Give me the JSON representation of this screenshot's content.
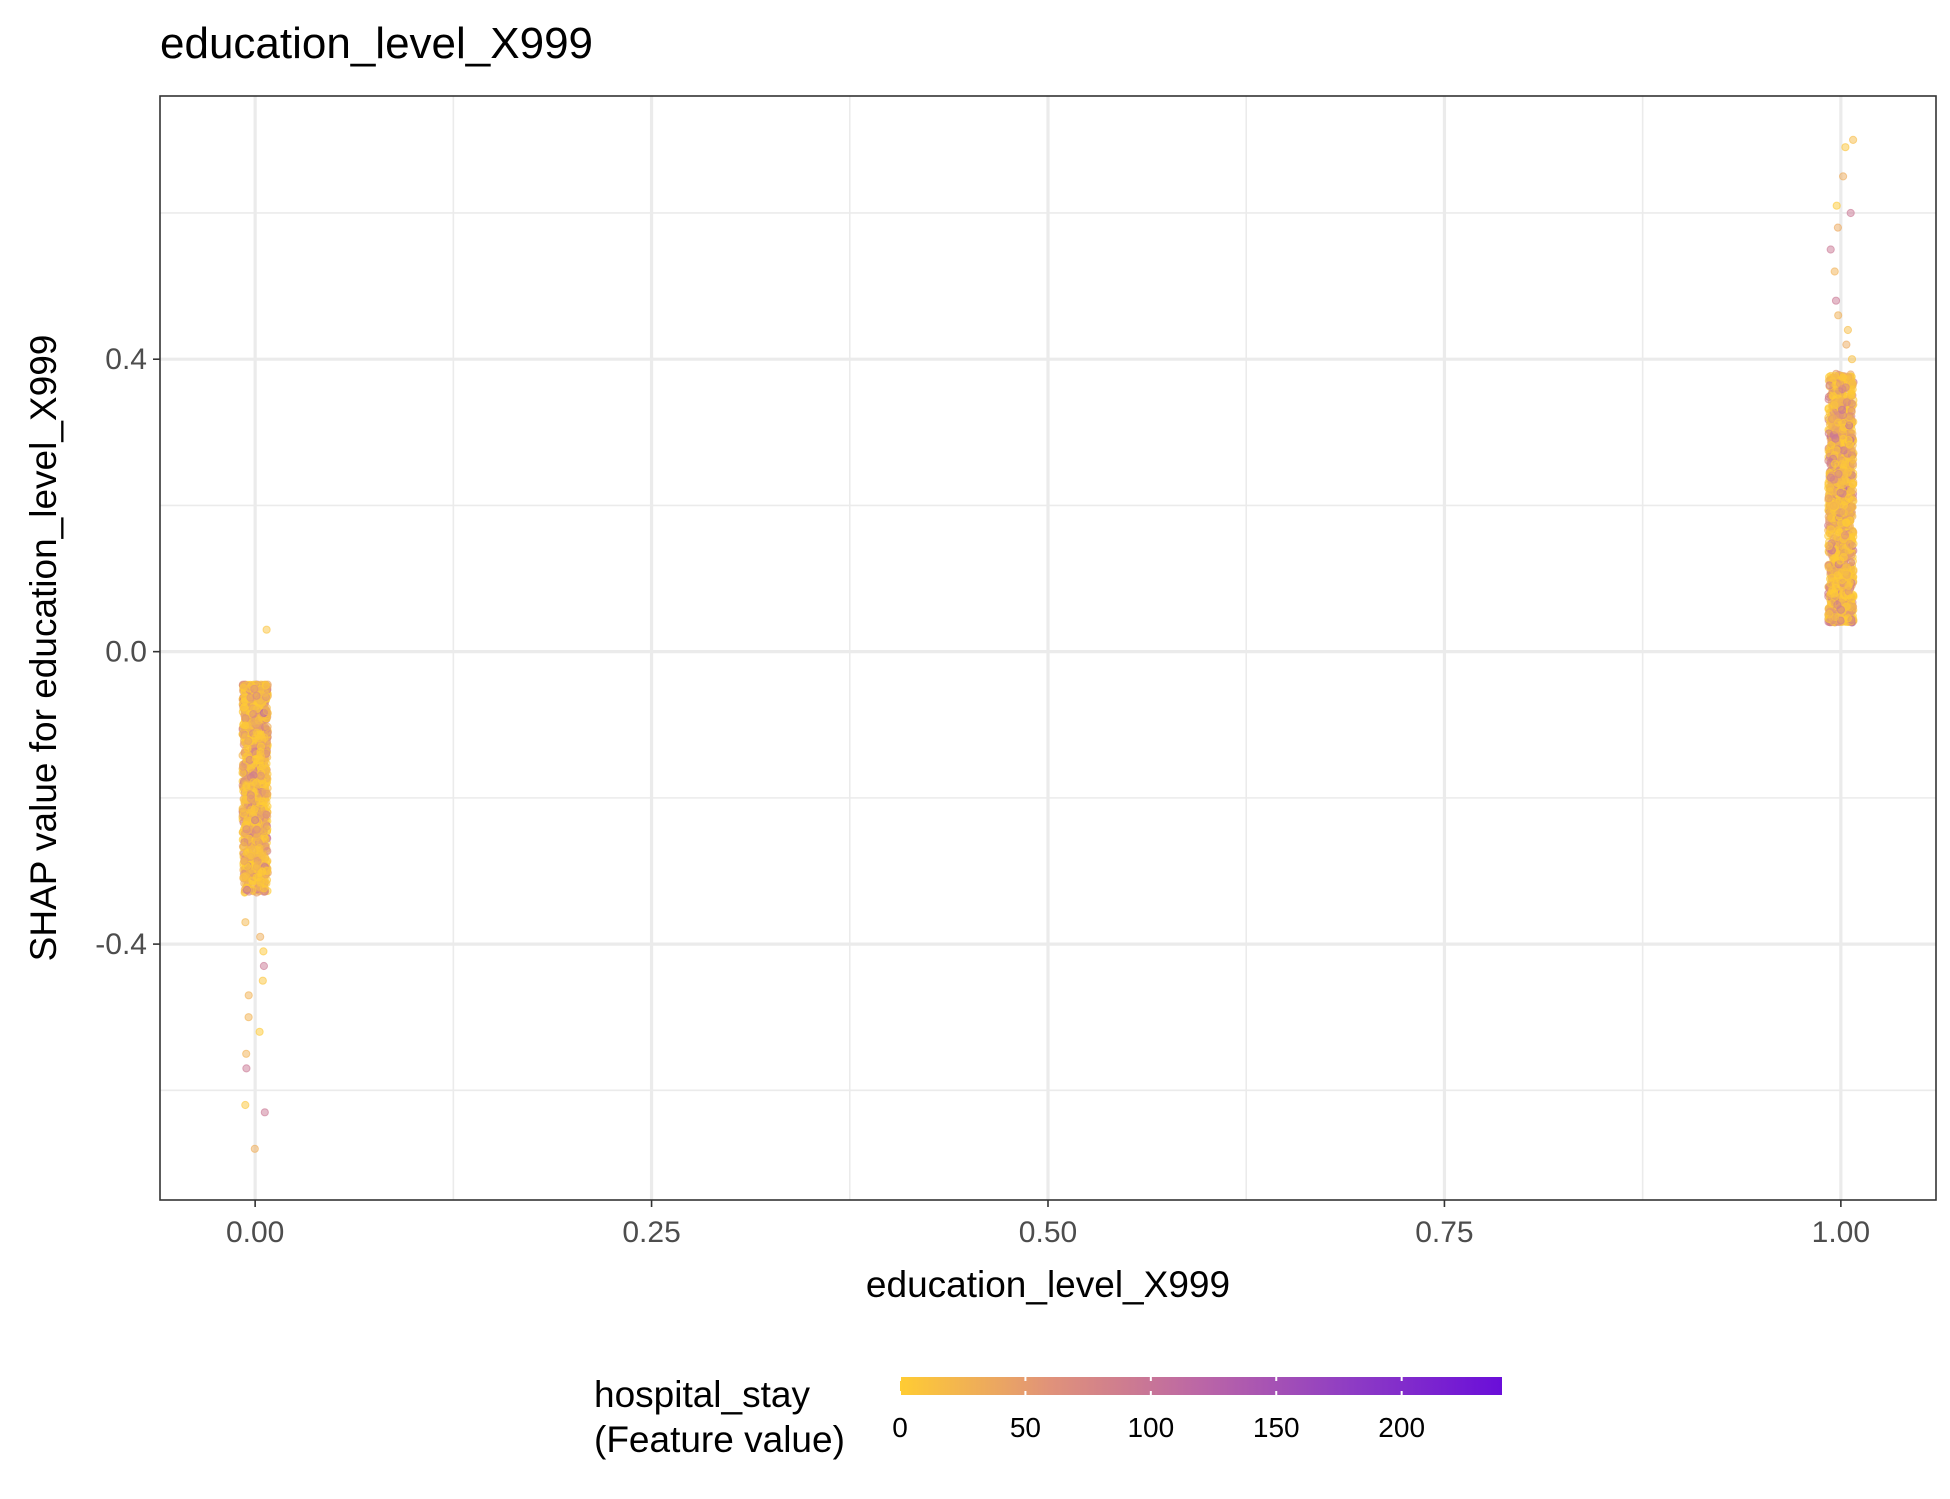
{
  "chart_data": {
    "type": "scatter",
    "title": "education_level_X999",
    "xlabel": "education_level_X999",
    "ylabel": "SHAP value for education_level_X999",
    "xlim": [
      -0.06,
      1.06
    ],
    "ylim": [
      -0.75,
      0.76
    ],
    "x_ticks": [
      0.0,
      0.25,
      0.5,
      0.75,
      1.0
    ],
    "x_tick_labels": [
      "0.00",
      "0.25",
      "0.50",
      "0.75",
      "1.00"
    ],
    "y_ticks": [
      -0.4,
      0.0,
      0.4
    ],
    "y_tick_labels": [
      "-0.4",
      "0.0",
      "0.4"
    ],
    "grid": true,
    "colorbar": {
      "title_lines": [
        "hospital_stay",
        "(Feature value)"
      ],
      "ticks": [
        0,
        50,
        100,
        150,
        200
      ],
      "tick_labels": [
        "0",
        "50",
        "100",
        "150",
        "200"
      ],
      "range": [
        0,
        240
      ],
      "colors": [
        "#ffcc33",
        "#e0927a",
        "#bb66a6",
        "#8e3cc4",
        "#6a0ed9"
      ],
      "placement": "bottom"
    },
    "point_groups": [
      {
        "x": 0,
        "jitter": 0.008,
        "y_dense_range": [
          -0.33,
          -0.045
        ],
        "y_sparse_points": [
          0.03,
          -0.37,
          -0.39,
          -0.41,
          -0.43,
          -0.45,
          -0.47,
          -0.5,
          -0.52,
          -0.55,
          -0.57,
          -0.62,
          -0.63,
          -0.68
        ]
      },
      {
        "x": 1,
        "jitter": 0.008,
        "y_dense_range": [
          0.04,
          0.38
        ],
        "y_sparse_points": [
          0.4,
          0.42,
          0.44,
          0.46,
          0.48,
          0.52,
          0.55,
          0.58,
          0.6,
          0.61,
          0.65,
          0.69,
          0.7
        ]
      }
    ]
  }
}
